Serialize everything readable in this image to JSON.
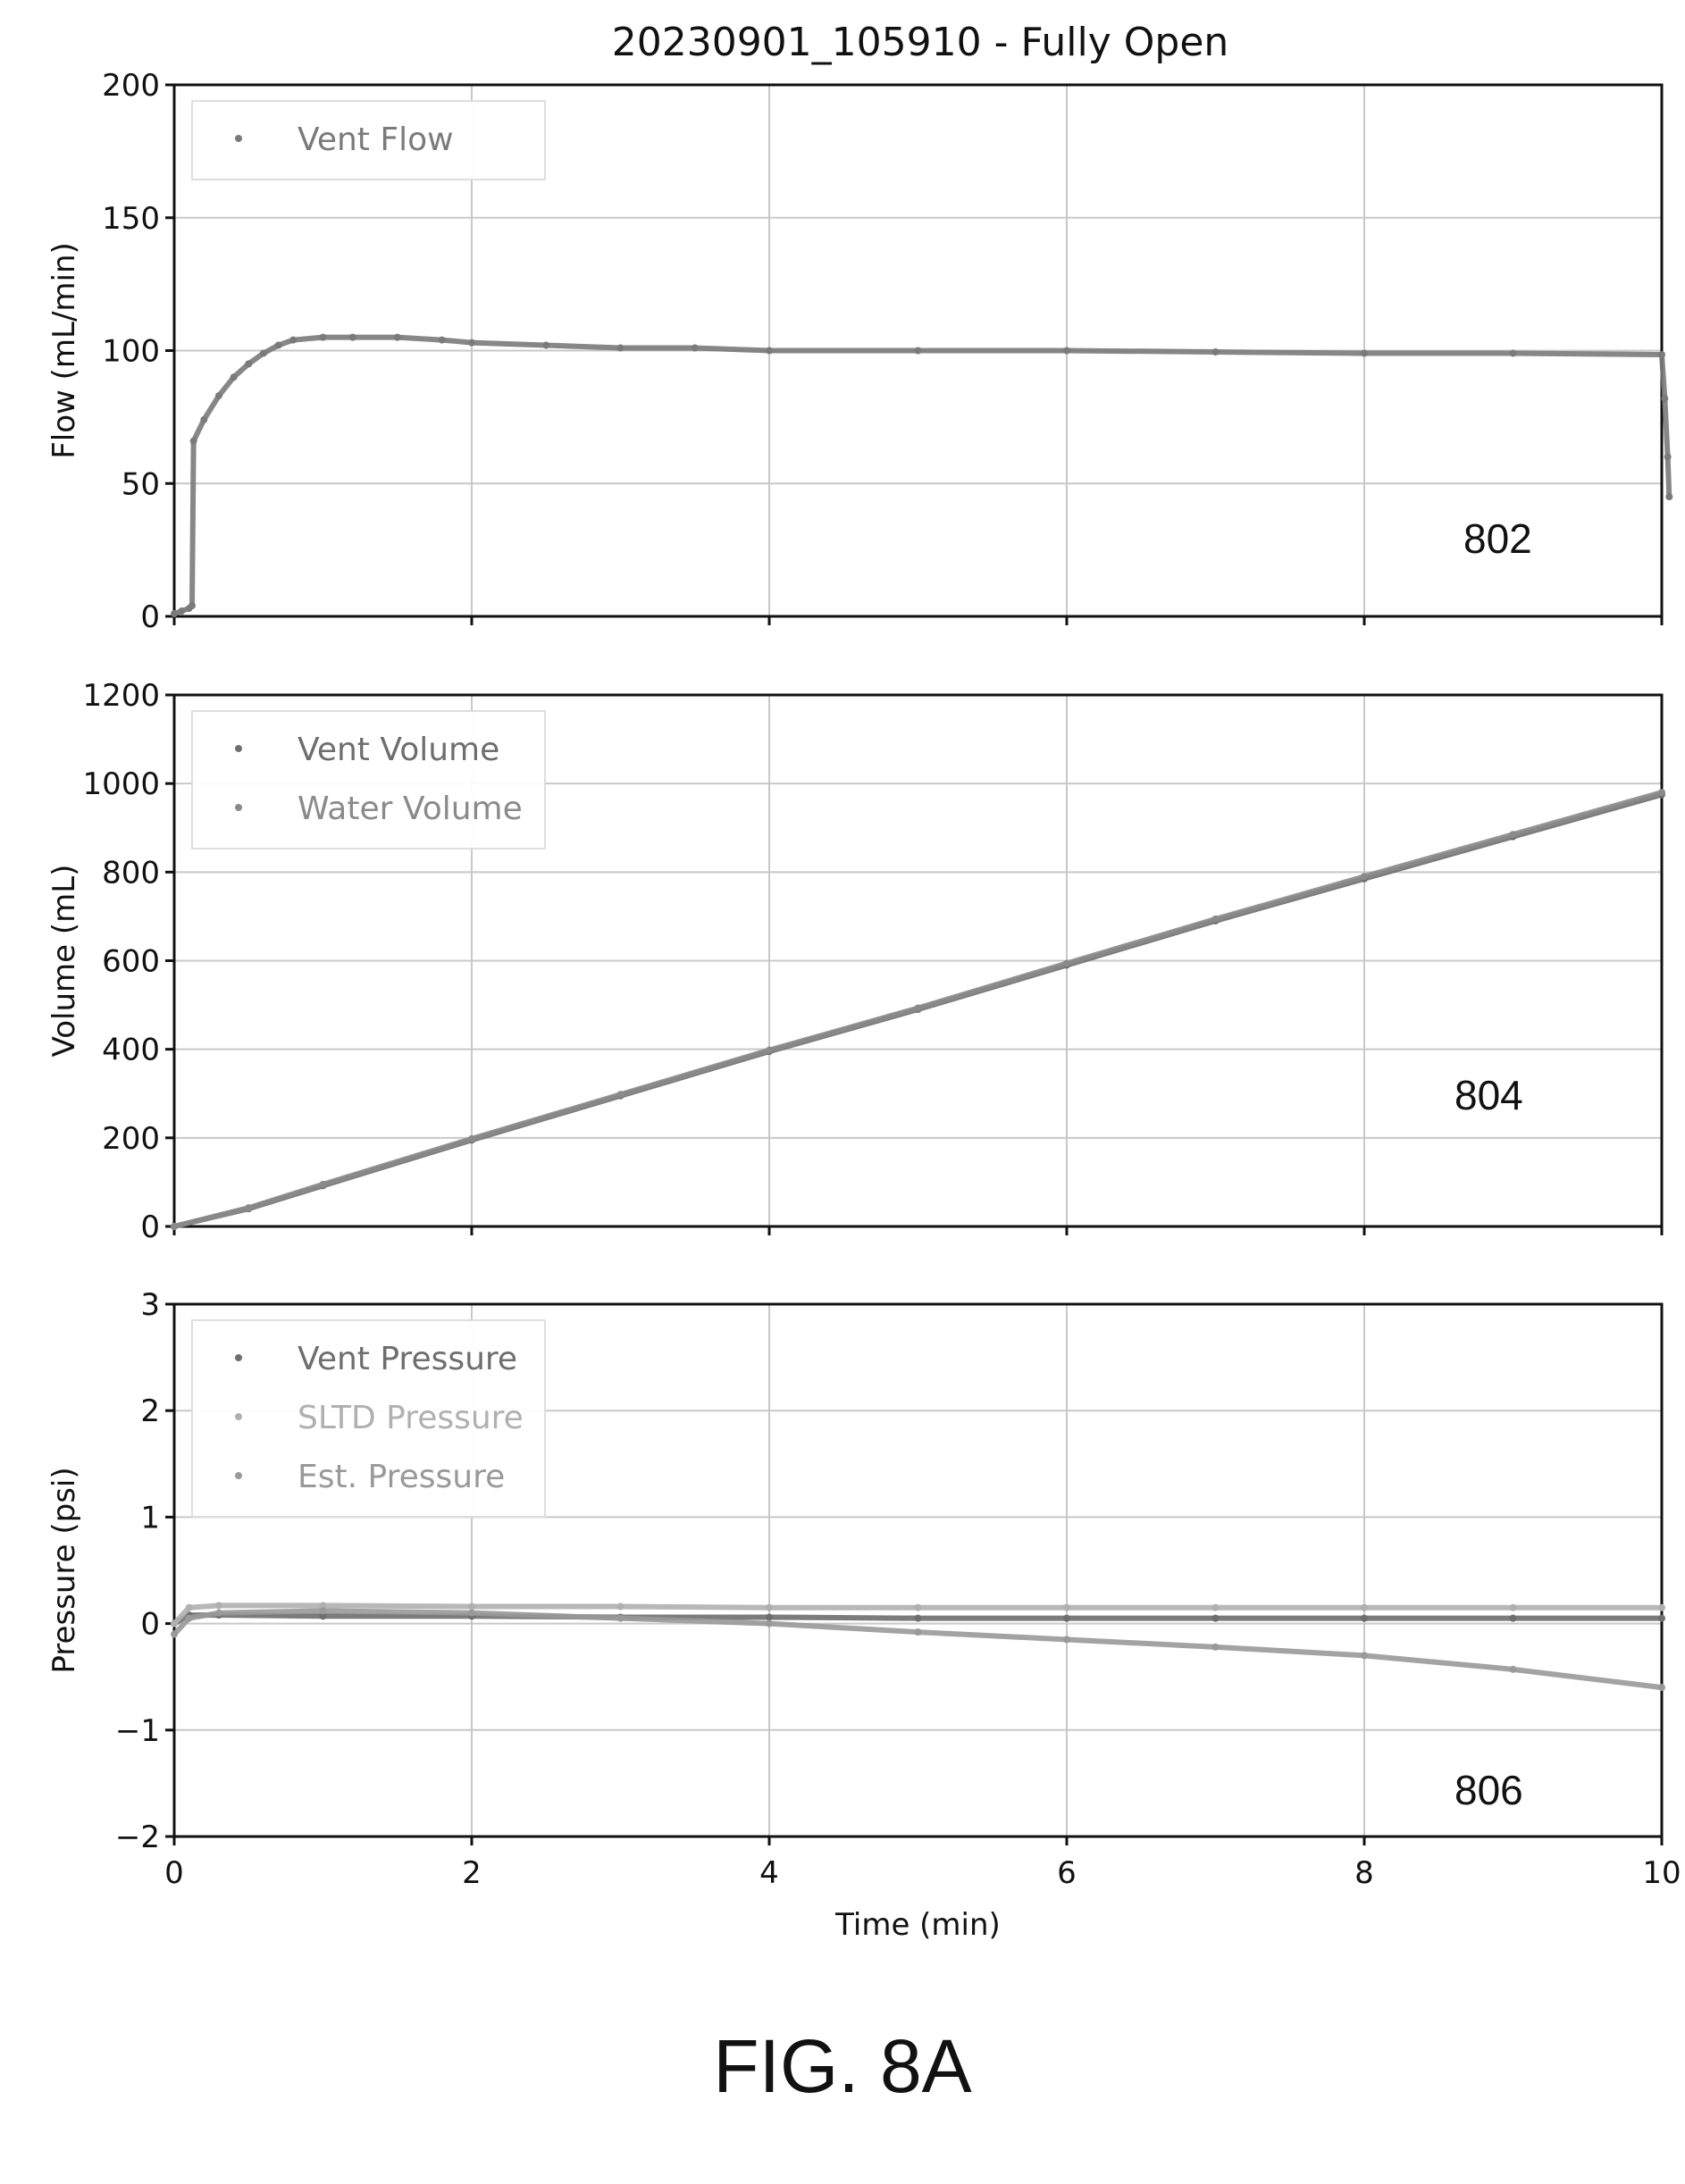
{
  "figure": {
    "caption": "FIG. 8A",
    "title": "20230901_105910 - Fully Open"
  },
  "chart_data": [
    {
      "type": "scatter",
      "ref": "802",
      "ylabel": "Flow (mL/min)",
      "xlabel": "",
      "xlim": [
        0,
        10
      ],
      "ylim": [
        0,
        200
      ],
      "yticks": [
        0,
        50,
        100,
        150,
        200
      ],
      "xticks": [
        0,
        2,
        4,
        6,
        8,
        10
      ],
      "grid": true,
      "legend": "top-left",
      "series": [
        {
          "name": "Vent Flow",
          "color": "#7a7a7a",
          "x": [
            0.0,
            0.05,
            0.1,
            0.12,
            0.13,
            0.2,
            0.3,
            0.4,
            0.5,
            0.6,
            0.7,
            0.8,
            1.0,
            1.2,
            1.5,
            1.8,
            2.0,
            2.5,
            3.0,
            3.5,
            4.0,
            5.0,
            6.0,
            7.0,
            8.0,
            9.0,
            10.0,
            10.02,
            10.04,
            10.05
          ],
          "y": [
            1,
            2,
            3,
            4,
            66,
            74,
            83,
            90,
            95,
            99,
            102,
            104,
            105,
            105,
            105,
            104,
            103,
            102,
            101,
            101,
            100,
            100,
            100,
            99.5,
            99,
            99,
            98.5,
            82,
            60,
            45
          ]
        }
      ]
    },
    {
      "type": "scatter",
      "ref": "804",
      "ylabel": "Volume (mL)",
      "xlabel": "",
      "xlim": [
        0,
        10
      ],
      "ylim": [
        0,
        1200
      ],
      "yticks": [
        0,
        200,
        400,
        600,
        800,
        1000,
        1200
      ],
      "xticks": [
        0,
        2,
        4,
        6,
        8,
        10
      ],
      "grid": true,
      "legend": "top-left",
      "series": [
        {
          "name": "Vent Volume",
          "color": "#6e6e6e",
          "x": [
            0,
            0.5,
            1,
            2,
            3,
            4,
            5,
            6,
            7,
            8,
            9,
            10
          ],
          "y": [
            0,
            40,
            92,
            195,
            295,
            395,
            490,
            590,
            690,
            785,
            880,
            975
          ]
        },
        {
          "name": "Water Volume",
          "color": "#8a8a8a",
          "x": [
            0,
            0.5,
            1,
            2,
            3,
            4,
            5,
            6,
            7,
            8,
            9,
            10
          ],
          "y": [
            0,
            42,
            95,
            198,
            298,
            398,
            493,
            594,
            694,
            790,
            885,
            980
          ]
        }
      ]
    },
    {
      "type": "scatter",
      "ref": "806",
      "ylabel": "Pressure (psi)",
      "xlabel": "Time (min)",
      "xlim": [
        0,
        10
      ],
      "ylim": [
        -2,
        3
      ],
      "yticks": [
        -2,
        -1,
        0,
        1,
        2,
        3
      ],
      "xticks": [
        0,
        2,
        4,
        6,
        8,
        10
      ],
      "grid": true,
      "legend": "top-left",
      "series": [
        {
          "name": "Vent Pressure",
          "color": "#6e6e6e",
          "x": [
            0,
            0.1,
            0.3,
            1,
            2,
            3,
            4,
            5,
            6,
            7,
            8,
            9,
            10
          ],
          "y": [
            0.0,
            0.08,
            0.08,
            0.07,
            0.07,
            0.06,
            0.06,
            0.05,
            0.05,
            0.05,
            0.05,
            0.05,
            0.05
          ]
        },
        {
          "name": "SLTD Pressure",
          "color": "#b0b0b0",
          "x": [
            0,
            0.1,
            0.3,
            1,
            2,
            3,
            4,
            5,
            6,
            7,
            8,
            9,
            10
          ],
          "y": [
            0.0,
            0.15,
            0.17,
            0.17,
            0.16,
            0.16,
            0.15,
            0.15,
            0.15,
            0.15,
            0.15,
            0.15,
            0.15
          ]
        },
        {
          "name": "Est. Pressure",
          "color": "#999999",
          "x": [
            0,
            0.1,
            0.3,
            1,
            2,
            3,
            4,
            5,
            6,
            7,
            8,
            9,
            10
          ],
          "y": [
            -0.1,
            0.05,
            0.1,
            0.12,
            0.1,
            0.05,
            0.0,
            -0.08,
            -0.15,
            -0.22,
            -0.3,
            -0.43,
            -0.6
          ]
        }
      ]
    }
  ]
}
